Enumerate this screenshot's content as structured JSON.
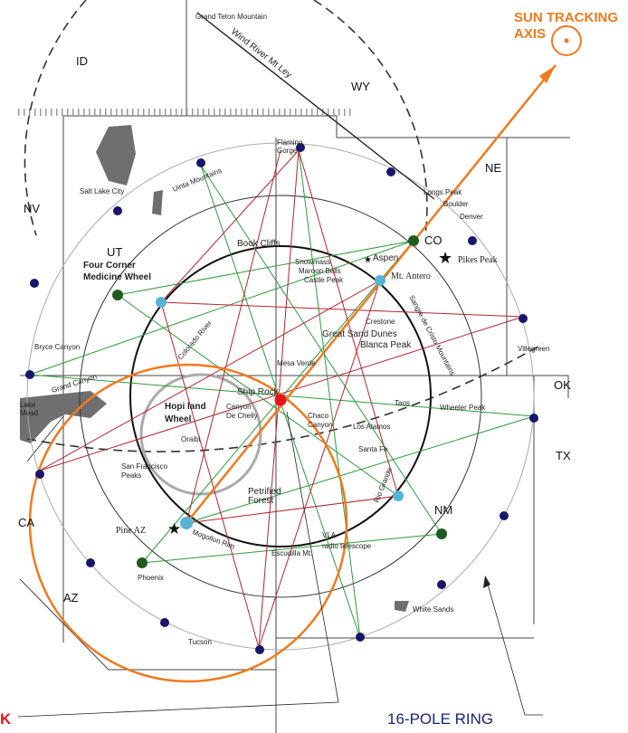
{
  "states": {
    "id": "ID",
    "wy": "WY",
    "nv": "NV",
    "ut": "UT",
    "co": "CO",
    "ne": "NE",
    "az": "AZ",
    "nm": "NM",
    "ca": "CA",
    "tx": "TX",
    "ok": "OK"
  },
  "places": {
    "grand_teton": "Grand Teton Mountain",
    "wind_river": "Wind River Mt Ley",
    "salt_lake": "Salt Lake City",
    "uinta": "Uinta Mountains",
    "flaming_gorge_1": "Flaming",
    "flaming_gorge_2": "Gorge",
    "longs_peak": "Longs Peak",
    "boulder": "Boulder",
    "denver": "Denver",
    "pikes_peak": "Pikes Peak",
    "book_cliffs": "Book Cliffs",
    "snowmass": "Snowmass",
    "aspen": "Aspen",
    "maroon_bells": "Maroon Bells",
    "castle_peak": "Castle Peak",
    "mt_antero": "Mt. Antero",
    "four_corner_1": "Four Corner",
    "four_corner_2": "Medicine Wheel",
    "sangre": "Sangre de Cristo Mountains",
    "colorado_river": "Colorado River",
    "crestone": "Crestone",
    "great_sand": "Great Sand Dunes",
    "blanca": "Blanca Peak",
    "bryce": "Bryce Canyon",
    "villegreen": "Villegreen",
    "mesa_verde": "Mesa Verde",
    "lake_mead_1": "Lake",
    "lake_mead_2": "Mead",
    "grand_canyon": "Grand Canyon",
    "ship_rock": "Ship Rock",
    "hopi_1": "Hopi land",
    "hopi_2": "Wheel",
    "canyon_dc_1": "Canyon",
    "canyon_dc_2": "De Chelly",
    "chaco_1": "Chaco",
    "chaco_2": "Canyon",
    "taos": "Taos",
    "wheeler": "Wheeler Peak",
    "oraibi": "Oraibi",
    "los_alamos": "Los Alamos",
    "santa_fe": "Santa Fe",
    "sf_peaks_1": "San Francisco",
    "sf_peaks_2": "Peaks",
    "petrified_1": "Petrified",
    "petrified_2": "Forest",
    "rio_grande": "Rio Grande",
    "pine_az": "Pine AZ",
    "mogollon": "Mogollon Rim",
    "vla_1": "VLA",
    "vla_2": "radio telescope",
    "escudilla": "Escudilla Mt.",
    "phoenix": "Phoenix",
    "tucson": "Tucson",
    "white_sands": "White Sands"
  },
  "annotations": {
    "sun_tracking_1": "SUN TRACKING",
    "sun_tracking_2": "AXIS",
    "sixteen_pole": "16-POLE RING",
    "left_label": "K"
  },
  "colors": {
    "orange": "#f07a1e",
    "red_star": "#b3262e",
    "green_star": "#2e9b3a",
    "navy": "#17166b",
    "cyan": "#56b3d4",
    "dark_green": "#1f5a1f",
    "center_red": "#e8141a",
    "water": "#6f6f6f",
    "annotation_text": "#1a237e",
    "alert_red": "#e8141a"
  }
}
